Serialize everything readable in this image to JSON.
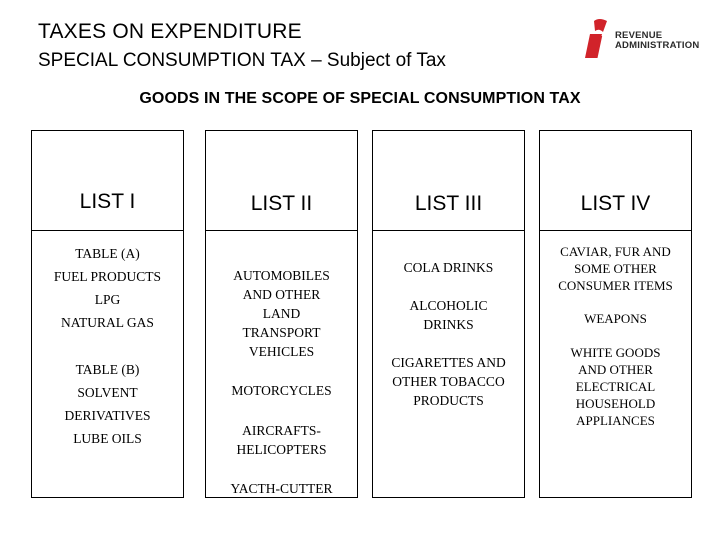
{
  "header": {
    "title": "TAXES ON EXPENDITURE",
    "subtitle": "SPECIAL CONSUMPTION TAX – Subject of Tax"
  },
  "logo": {
    "line1": "REVENUE",
    "line2": "ADMINISTRATION",
    "accent_color": "#d1232a"
  },
  "scope_heading": "GOODS IN THE SCOPE OF SPECIAL CONSUMPTION TAX",
  "lists": [
    {
      "name": "LIST I",
      "items": [
        {
          "lines": [
            "TABLE (A)",
            "FUEL PRODUCTS",
            "LPG",
            "NATURAL GAS"
          ]
        },
        {
          "lines": [
            "TABLE (B)",
            "SOLVENT",
            "DERIVATIVES",
            "LUBE OILS"
          ]
        }
      ]
    },
    {
      "name": "LIST II",
      "items": [
        {
          "lines": [
            "AUTOMOBILES",
            "AND OTHER",
            "LAND",
            "TRANSPORT",
            "VEHICLES"
          ]
        },
        {
          "lines": [
            "MOTORCYCLES"
          ]
        },
        {
          "lines": [
            "AIRCRAFTS-",
            "HELICOPTERS"
          ]
        },
        {
          "lines": [
            "YACTH-CUTTER"
          ]
        }
      ]
    },
    {
      "name": "LIST III",
      "items": [
        {
          "lines": [
            "COLA DRINKS"
          ]
        },
        {
          "lines": [
            "ALCOHOLIC",
            "DRINKS"
          ]
        },
        {
          "lines": [
            "CIGARETTES AND",
            "OTHER TOBACCO",
            "PRODUCTS"
          ]
        }
      ]
    },
    {
      "name": "LIST IV",
      "items": [
        {
          "lines": [
            "CAVIAR, FUR AND",
            "SOME OTHER",
            "CONSUMER ITEMS"
          ]
        },
        {
          "lines": [
            "WEAPONS"
          ]
        },
        {
          "lines": [
            "WHITE GOODS",
            "AND OTHER",
            "ELECTRICAL",
            "HOUSEHOLD",
            "APPLIANCES"
          ]
        }
      ]
    }
  ]
}
